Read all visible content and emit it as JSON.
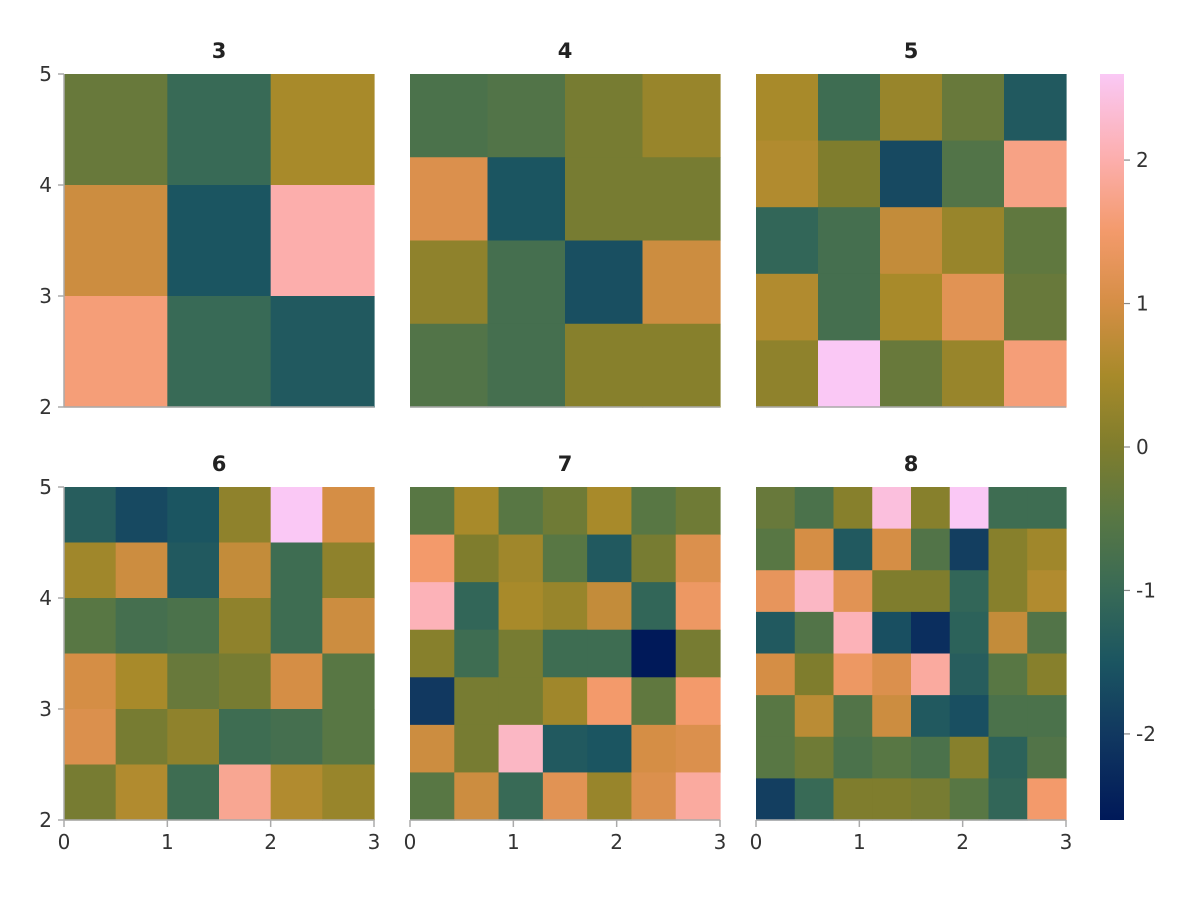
{
  "chart_data": {
    "type": "heatmap",
    "colormap": {
      "name": "batlow-like",
      "range": [
        -2.6,
        2.6
      ],
      "ticks": [
        "-2",
        "-1",
        "0",
        "1",
        "2"
      ],
      "stops": [
        {
          "v": -2.6,
          "c": "#001959"
        },
        {
          "v": -2.0,
          "c": "#113860"
        },
        {
          "v": -1.5,
          "c": "#1b5561"
        },
        {
          "v": -1.0,
          "c": "#386a56"
        },
        {
          "v": -0.5,
          "c": "#587744"
        },
        {
          "v": 0.0,
          "c": "#7f7d2d"
        },
        {
          "v": 0.5,
          "c": "#a88a2a"
        },
        {
          "v": 1.0,
          "c": "#d58e45"
        },
        {
          "v": 1.5,
          "c": "#f39a6b"
        },
        {
          "v": 2.0,
          "c": "#fcaeac"
        },
        {
          "v": 2.6,
          "c": "#fac8f5"
        }
      ]
    },
    "x_range": [
      0,
      3
    ],
    "y_range": [
      2,
      5
    ],
    "x_ticks": [
      "0",
      "1",
      "2",
      "3"
    ],
    "y_ticks": [
      "2",
      "3",
      "4",
      "5"
    ],
    "panels": [
      {
        "title": "3",
        "values": [
          [
            -0.3,
            -1.0,
            0.5
          ],
          [
            0.9,
            -1.5,
            2.0
          ],
          [
            1.6,
            -1.0,
            -1.4
          ]
        ]
      },
      {
        "title": "4",
        "values": [
          [
            -0.7,
            -0.6,
            -0.1,
            0.3
          ],
          [
            1.1,
            -1.5,
            -0.1,
            -0.1
          ],
          [
            0.2,
            -0.8,
            -1.6,
            0.9
          ],
          [
            -0.6,
            -0.8,
            0.1,
            0.1
          ]
        ]
      },
      {
        "title": "5",
        "values": [
          [
            0.5,
            -0.9,
            0.3,
            -0.3,
            -1.4
          ],
          [
            0.6,
            0.0,
            -1.7,
            -0.6,
            1.7
          ],
          [
            -1.1,
            -0.8,
            0.8,
            0.3,
            -0.4
          ],
          [
            0.6,
            -0.8,
            0.5,
            1.2,
            -0.3
          ],
          [
            0.2,
            2.6,
            -0.3,
            0.3,
            1.6
          ]
        ]
      },
      {
        "title": "6",
        "values": [
          [
            -1.3,
            -1.7,
            -1.5,
            0.2,
            2.6,
            1.0
          ],
          [
            0.4,
            0.9,
            -1.4,
            0.8,
            -0.9,
            0.2
          ],
          [
            -0.5,
            -0.8,
            -0.7,
            0.2,
            -0.9,
            0.9
          ],
          [
            1.0,
            0.5,
            -0.3,
            -0.1,
            1.0,
            -0.5
          ],
          [
            1.1,
            -0.1,
            0.2,
            -0.9,
            -0.8,
            -0.5
          ],
          [
            -0.1,
            0.6,
            -0.9,
            1.8,
            0.6,
            0.3
          ]
        ]
      },
      {
        "title": "7",
        "values": [
          [
            -0.5,
            0.5,
            -0.5,
            -0.2,
            0.5,
            -0.5,
            -0.2
          ],
          [
            1.5,
            0.0,
            0.4,
            -0.5,
            -1.4,
            -0.1,
            1.1
          ],
          [
            2.1,
            -1.1,
            0.5,
            0.3,
            0.8,
            -1.1,
            1.4
          ],
          [
            0.1,
            -0.9,
            -0.1,
            -0.9,
            -0.9,
            -2.6,
            -0.1
          ],
          [
            -2.0,
            -0.1,
            -0.1,
            0.4,
            1.5,
            -0.4,
            1.5
          ],
          [
            0.9,
            -0.1,
            2.2,
            -1.4,
            -1.5,
            1.0,
            1.1
          ],
          [
            -0.5,
            0.9,
            -1.0,
            1.2,
            0.3,
            1.1,
            1.9
          ]
        ]
      },
      {
        "title": "8",
        "values": [
          [
            -0.3,
            -0.7,
            0.1,
            2.4,
            0.1,
            2.6,
            -0.9,
            -0.9
          ],
          [
            -0.5,
            1.0,
            -1.4,
            1.0,
            -0.6,
            -1.9,
            0.1,
            0.4
          ],
          [
            1.3,
            2.2,
            1.2,
            0.0,
            0.0,
            -1.1,
            0.1,
            0.6
          ],
          [
            -1.4,
            -0.6,
            2.1,
            -1.6,
            -2.2,
            -1.2,
            0.8,
            -0.6
          ],
          [
            1.0,
            0.0,
            1.4,
            1.1,
            1.9,
            -1.3,
            -0.5,
            0.1
          ],
          [
            -0.5,
            0.7,
            -0.6,
            0.9,
            -1.4,
            -1.6,
            -0.7,
            -0.7
          ],
          [
            -0.5,
            -0.2,
            -0.7,
            -0.5,
            -0.7,
            0.1,
            -1.2,
            -0.6
          ],
          [
            -1.9,
            -1.0,
            0.0,
            0.0,
            -0.1,
            -0.5,
            -1.1,
            1.5
          ]
        ]
      }
    ]
  }
}
